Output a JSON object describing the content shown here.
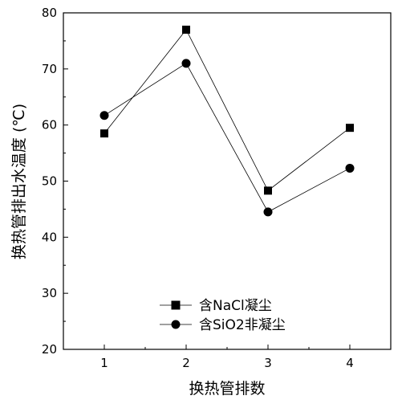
{
  "chart_data": {
    "type": "line",
    "title": "",
    "xlabel": "换热管排数",
    "ylabel": "换热管排出水温度 (℃)",
    "x": [
      1,
      2,
      3,
      4
    ],
    "xlim": [
      0.5,
      4.5
    ],
    "ylim": [
      20,
      80
    ],
    "xticks": [
      "1",
      "2",
      "3",
      "4"
    ],
    "yticks": [
      "20",
      "30",
      "40",
      "50",
      "60",
      "70",
      "80"
    ],
    "grid": false,
    "legend_position": "bottom-center",
    "series": [
      {
        "name": "含NaCl凝尘",
        "marker": "square",
        "values": [
          58.5,
          77.0,
          48.3,
          59.5
        ]
      },
      {
        "name": "含SiO2非凝尘",
        "marker": "circle",
        "values": [
          61.7,
          71.0,
          44.5,
          52.3
        ]
      }
    ]
  }
}
